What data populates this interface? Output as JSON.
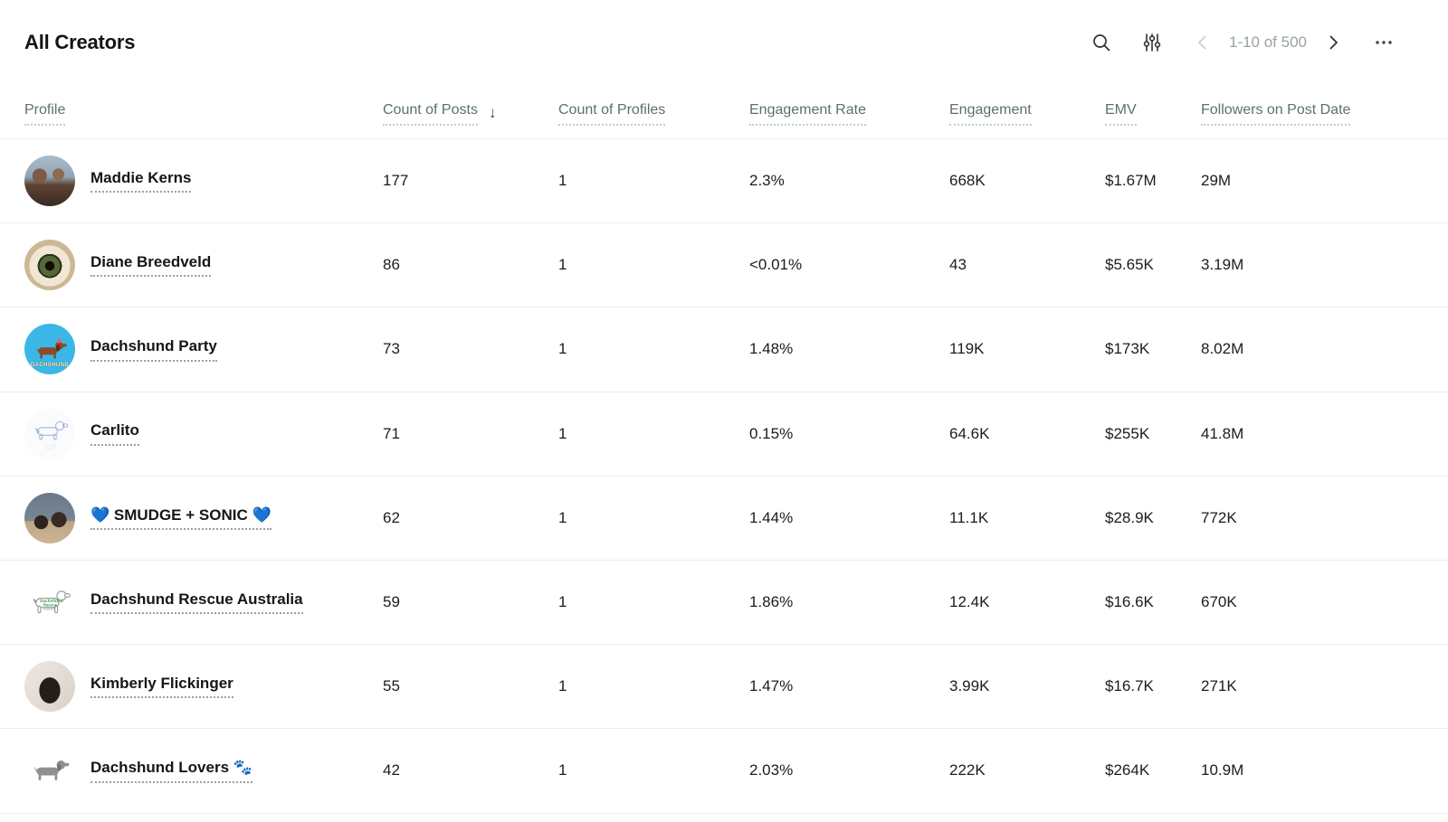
{
  "header": {
    "title": "All Creators",
    "pagination": "1-10 of 500"
  },
  "table": {
    "columns": [
      {
        "key": "profile",
        "label": "Profile"
      },
      {
        "key": "count-of-posts",
        "label": "Count of Posts",
        "sorted": "desc"
      },
      {
        "key": "count-of-profiles",
        "label": "Count of Profiles"
      },
      {
        "key": "engagement-rate",
        "label": "Engagement Rate"
      },
      {
        "key": "engagement",
        "label": "Engagement"
      },
      {
        "key": "emv",
        "label": "EMV"
      },
      {
        "key": "followers-on-post-date",
        "label": "Followers on Post Date"
      }
    ],
    "rows": [
      {
        "name": "Maddie Kerns",
        "avatar": "maddie-kerns-avatar",
        "posts": "177",
        "profiles": "1",
        "rate": "2.3%",
        "engagement": "668K",
        "emv": "$1.67M",
        "followers": "29M"
      },
      {
        "name": "Diane Breedveld",
        "avatar": "diane-breedveld-avatar",
        "posts": "86",
        "profiles": "1",
        "rate": "<0.01%",
        "engagement": "43",
        "emv": "$5.65K",
        "followers": "3.19M"
      },
      {
        "name": "Dachshund Party",
        "avatar": "dachshund-party-avatar",
        "posts": "73",
        "profiles": "1",
        "rate": "1.48%",
        "engagement": "119K",
        "emv": "$173K",
        "followers": "8.02M"
      },
      {
        "name": "Carlito",
        "avatar": "carlito-avatar",
        "posts": "71",
        "profiles": "1",
        "rate": "0.15%",
        "engagement": "64.6K",
        "emv": "$255K",
        "followers": "41.8M"
      },
      {
        "name": "💙 SMUDGE + SONIC 💙",
        "avatar": "smudge-sonic-avatar",
        "posts": "62",
        "profiles": "1",
        "rate": "1.44%",
        "engagement": "11.1K",
        "emv": "$28.9K",
        "followers": "772K"
      },
      {
        "name": "Dachshund Rescue Australia",
        "avatar": "dachshund-rescue-australia-avatar",
        "posts": "59",
        "profiles": "1",
        "rate": "1.86%",
        "engagement": "12.4K",
        "emv": "$16.6K",
        "followers": "670K"
      },
      {
        "name": "Kimberly Flickinger",
        "avatar": "kimberly-flickinger-avatar",
        "posts": "55",
        "profiles": "1",
        "rate": "1.47%",
        "engagement": "3.99K",
        "emv": "$16.7K",
        "followers": "271K"
      },
      {
        "name": "Dachshund Lovers 🐾",
        "avatar": "dachshund-lovers-avatar",
        "posts": "42",
        "profiles": "1",
        "rate": "2.03%",
        "engagement": "222K",
        "emv": "$264K",
        "followers": "10.9M"
      }
    ]
  },
  "colors": {
    "accent_blue": "#3ab7e6",
    "text": "#1a1c1d",
    "muted_header": "#5d6f73",
    "pagination_gray": "#98a2a4",
    "separator": "#ecedee"
  }
}
